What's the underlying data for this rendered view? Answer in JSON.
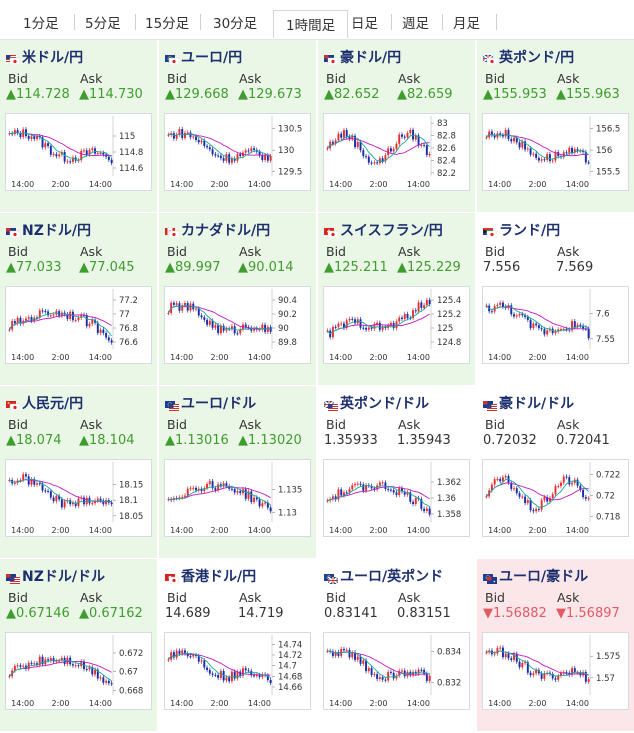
{
  "tabs": [
    {
      "label": "1分足",
      "active": false
    },
    {
      "label": "5分足",
      "active": false
    },
    {
      "label": "15分足",
      "active": false
    },
    {
      "label": "30分足",
      "active": false
    },
    {
      "label": "1時間足",
      "active": true
    },
    {
      "label": "日足",
      "active": false
    },
    {
      "label": "週足",
      "active": false
    },
    {
      "label": "月足",
      "active": false
    }
  ],
  "colors": {
    "up": "#3f9c2f",
    "down": "#e35a64",
    "candle_up": "#e53030",
    "candle_down": "#1a2ca8",
    "ma_long": "#c219c2",
    "ma_short": "#18a89a"
  },
  "bid_label": "Bid",
  "ask_label": "Ask",
  "pairs": [
    {
      "name": "米ドル/円",
      "flag": "us-jp-flag-icon",
      "dir": "up",
      "bid": "▲114.728",
      "ask": "▲114.730",
      "chart": {
        "ymin": 114.5,
        "ymax": 115.2,
        "yticks": [
          "115",
          "114.8",
          "114.6"
        ],
        "trend": "down"
      }
    },
    {
      "name": "ユーロ/円",
      "flag": "eu-jp-flag-icon",
      "dir": "up",
      "bid": "▲129.668",
      "ask": "▲129.673",
      "chart": {
        "ymin": 129.4,
        "ymax": 130.7,
        "yticks": [
          "130.5",
          "130",
          "129.5"
        ],
        "trend": "down"
      }
    },
    {
      "name": "豪ドル/円",
      "flag": "au-jp-flag-icon",
      "dir": "up",
      "bid": "▲82.652",
      "ask": "▲82.659",
      "chart": {
        "ymin": 82.15,
        "ymax": 83.05,
        "yticks": [
          "83",
          "82.8",
          "82.6",
          "82.4",
          "82.2"
        ],
        "trend": "wave"
      }
    },
    {
      "name": "英ポンド/円",
      "flag": "gb-jp-flag-icon",
      "dir": "up",
      "bid": "▲155.953",
      "ask": "▲155.963",
      "chart": {
        "ymin": 155.4,
        "ymax": 156.7,
        "yticks": [
          "156.5",
          "156",
          "155.5"
        ],
        "trend": "down"
      }
    },
    {
      "name": "NZドル/円",
      "flag": "nz-jp-flag-icon",
      "dir": "up",
      "bid": "▲77.033",
      "ask": "▲77.045",
      "chart": {
        "ymin": 76.5,
        "ymax": 77.3,
        "yticks": [
          "77.2",
          "77",
          "76.8",
          "76.6"
        ],
        "trend": "hump"
      }
    },
    {
      "name": "カナダドル/円",
      "flag": "ca-jp-flag-icon",
      "dir": "up",
      "bid": "▲89.997",
      "ask": "▲90.014",
      "chart": {
        "ymin": 89.7,
        "ymax": 90.5,
        "yticks": [
          "90.4",
          "90.2",
          "90",
          "89.8"
        ],
        "trend": "down"
      }
    },
    {
      "name": "スイスフラン/円",
      "flag": "ch-jp-flag-icon",
      "dir": "up",
      "bid": "▲125.211",
      "ask": "▲125.229",
      "chart": {
        "ymin": 124.7,
        "ymax": 125.5,
        "yticks": [
          "125.4",
          "125.2",
          "125",
          "124.8"
        ],
        "trend": "up"
      }
    },
    {
      "name": "ランド/円",
      "flag": "za-jp-flag-icon",
      "dir": "flat",
      "bid": "7.556",
      "ask": "7.569",
      "chart": {
        "ymin": 7.53,
        "ymax": 7.64,
        "yticks": [
          "7.6",
          "7.55"
        ],
        "trend": "down"
      }
    },
    {
      "name": "人民元/円",
      "flag": "cn-jp-flag-icon",
      "dir": "up",
      "bid": "▲18.074",
      "ask": "▲18.104",
      "chart": {
        "ymin": 18.03,
        "ymax": 18.21,
        "yticks": [
          "18.15",
          "18.1",
          "18.05"
        ],
        "trend": "down"
      }
    },
    {
      "name": "ユーロ/ドル",
      "flag": "eu-us-flag-icon",
      "dir": "up",
      "bid": "▲1.13016",
      "ask": "▲1.13020",
      "chart": {
        "ymin": 1.128,
        "ymax": 1.14,
        "yticks": [
          "1.135",
          "1.13"
        ],
        "trend": "hump"
      }
    },
    {
      "name": "英ポンド/ドル",
      "flag": "gb-us-flag-icon",
      "dir": "flat",
      "bid": "1.35933",
      "ask": "1.35943",
      "chart": {
        "ymin": 1.357,
        "ymax": 1.364,
        "yticks": [
          "1.362",
          "1.36",
          "1.358"
        ],
        "trend": "hump"
      }
    },
    {
      "name": "豪ドル/ドル",
      "flag": "au-us-flag-icon",
      "dir": "flat",
      "bid": "0.72032",
      "ask": "0.72041",
      "chart": {
        "ymin": 0.7175,
        "ymax": 0.7228,
        "yticks": [
          "0.722",
          "0.72",
          "0.718"
        ],
        "trend": "wave"
      }
    },
    {
      "name": "NZドル/ドル",
      "flag": "nz-us-flag-icon",
      "dir": "up",
      "bid": "▲0.67146",
      "ask": "▲0.67162",
      "chart": {
        "ymin": 0.6675,
        "ymax": 0.6735,
        "yticks": [
          "0.672",
          "0.67",
          "0.668"
        ],
        "trend": "hump"
      }
    },
    {
      "name": "香港ドル/円",
      "flag": "hk-jp-flag-icon",
      "dir": "flat",
      "bid": "14.689",
      "ask": "14.719",
      "chart": {
        "ymin": 14.645,
        "ymax": 14.75,
        "yticks": [
          "14.74",
          "14.72",
          "14.7",
          "14.68",
          "14.66"
        ],
        "trend": "down"
      }
    },
    {
      "name": "ユーロ/英ポンド",
      "flag": "eu-gb-flag-icon",
      "dir": "flat",
      "bid": "0.83141",
      "ask": "0.83151",
      "chart": {
        "ymin": 0.8312,
        "ymax": 0.8348,
        "yticks": [
          "0.834",
          "0.832"
        ],
        "trend": "down"
      }
    },
    {
      "name": "ユーロ/豪ドル",
      "flag": "eu-au-flag-icon",
      "dir": "down",
      "bid": "▼1.56882",
      "ask": "▼1.56897",
      "chart": {
        "ymin": 1.566,
        "ymax": 1.579,
        "yticks": [
          "1.575",
          "1.57"
        ],
        "trend": "down"
      }
    }
  ],
  "xticks": [
    "14:00",
    "2:00",
    "14:00"
  ]
}
